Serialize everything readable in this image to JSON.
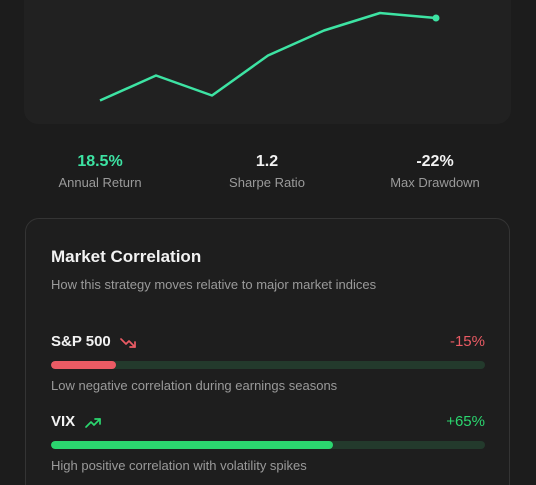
{
  "chart": {
    "line_color": "#3de3a3",
    "points": [
      {
        "x": 0,
        "y": 3
      },
      {
        "x": 1,
        "y": 13
      },
      {
        "x": 2,
        "y": 5
      },
      {
        "x": 3,
        "y": 21
      },
      {
        "x": 4,
        "y": 31
      },
      {
        "x": 5,
        "y": 38
      },
      {
        "x": 6,
        "y": 36
      }
    ]
  },
  "stats": [
    {
      "value": "18.5%",
      "label": "Annual Return",
      "color": "#3de3a3"
    },
    {
      "value": "1.2",
      "label": "Sharpe Ratio",
      "color": "#f2f2f2"
    },
    {
      "value": "-22%",
      "label": "Max Drawdown",
      "color": "#f2f2f2"
    }
  ],
  "correlation": {
    "title": "Market Correlation",
    "subtitle": "How this strategy moves relative to major market indices",
    "rows": [
      {
        "name": "S&P 500",
        "value": "-15%",
        "level": 0.15,
        "trend_icon": "trending-down-icon",
        "color": "#ea5b64",
        "description": "Low negative correlation during earnings seasons"
      },
      {
        "name": "VIX",
        "value": "+65%",
        "level": 0.65,
        "trend_icon": "trending-up-icon",
        "color": "#2bd66f",
        "description": "High positive correlation with volatility spikes"
      }
    ]
  }
}
